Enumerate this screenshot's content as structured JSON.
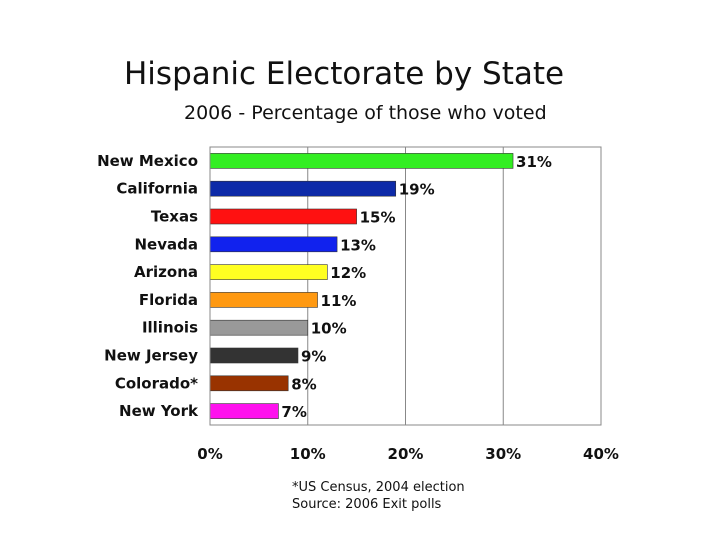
{
  "chart_data": {
    "type": "bar",
    "orientation": "horizontal",
    "title": "Hispanic Electorate by State",
    "subtitle": "2006 - Percentage of those who voted",
    "categories": [
      "New Mexico",
      "California",
      "Texas",
      "Nevada",
      "Arizona",
      "Florida",
      "Illinois",
      "New Jersey",
      "Colorado*",
      "New York"
    ],
    "values": [
      31,
      19,
      15,
      13,
      12,
      11,
      10,
      9,
      8,
      7
    ],
    "value_labels": [
      "31%",
      "19%",
      "15%",
      "13%",
      "12%",
      "11%",
      "10%",
      "9%",
      "8%",
      "7%"
    ],
    "colors": [
      "#33ee22",
      "#0d2aa8",
      "#ff1111",
      "#1122ee",
      "#ffff22",
      "#ff9911",
      "#999999",
      "#333333",
      "#993300",
      "#ff11ee"
    ],
    "xlim": [
      0,
      40
    ],
    "xticks": [
      0,
      10,
      20,
      30,
      40
    ],
    "xtick_labels": [
      "0%",
      "10%",
      "20%",
      "30%",
      "40%"
    ],
    "grid": true,
    "xlabel": "",
    "ylabel": ""
  },
  "footnotes": {
    "census": "*US Census, 2004 election",
    "source": "Source: 2006 Exit polls"
  }
}
